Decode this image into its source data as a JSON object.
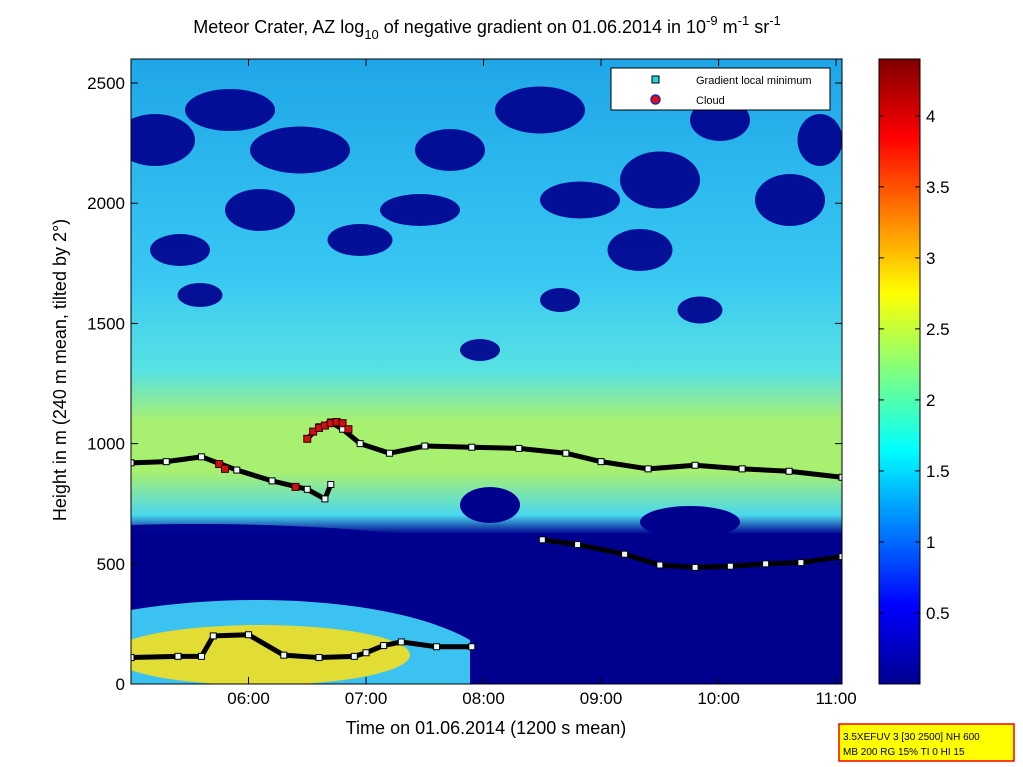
{
  "chart_data": {
    "type": "heatmap",
    "title_main": "Meteor Crater, AZ log",
    "title_sub": "10",
    "title_mid": " of negative gradient on 01.06.2014 in 10",
    "title_sup1": "-9",
    "title_unit1": " m",
    "title_sup2": "-1",
    "title_unit2": " sr",
    "title_sup3": "-1",
    "xlabel": "Time on 01.06.2014 (1200 s mean)",
    "ylabel": "Height in m (240 m mean, tilted by 2°)",
    "xlim": [
      5.0,
      11.05
    ],
    "ylim": [
      0,
      2600
    ],
    "x_ticks": [
      {
        "value": 6,
        "label": "06:00"
      },
      {
        "value": 7,
        "label": "07:00"
      },
      {
        "value": 8,
        "label": "08:00"
      },
      {
        "value": 9,
        "label": "09:00"
      },
      {
        "value": 10,
        "label": "10:00"
      },
      {
        "value": 11,
        "label": "11:00"
      }
    ],
    "y_ticks": [
      {
        "value": 0,
        "label": "0"
      },
      {
        "value": 500,
        "label": "500"
      },
      {
        "value": 1000,
        "label": "1000"
      },
      {
        "value": 1500,
        "label": "1500"
      },
      {
        "value": 2000,
        "label": "2000"
      },
      {
        "value": 2500,
        "label": "2500"
      }
    ],
    "colorbar": {
      "range": [
        0,
        4.4
      ],
      "ticks": [
        {
          "value": 0.5,
          "label": "0.5"
        },
        {
          "value": 1,
          "label": "1"
        },
        {
          "value": 1.5,
          "label": "1.5"
        },
        {
          "value": 2,
          "label": "2"
        },
        {
          "value": 2.5,
          "label": "2.5"
        },
        {
          "value": 3,
          "label": "3"
        },
        {
          "value": 3.5,
          "label": "3.5"
        },
        {
          "value": 4,
          "label": "4"
        }
      ]
    },
    "legend": {
      "placement": "top-right",
      "entries": [
        {
          "label": "Gradient local minimum",
          "color": "#22d6e0",
          "marker": "square"
        },
        {
          "label": "Cloud",
          "color": "#e01010",
          "marker": "circle"
        }
      ]
    },
    "series": [
      {
        "kind": "gradient-min",
        "x": [
          5.0,
          5.3,
          5.6,
          5.9,
          6.2,
          6.5,
          6.65,
          6.7
        ],
        "y": [
          920,
          925,
          945,
          890,
          845,
          810,
          770,
          830
        ]
      },
      {
        "kind": "gradient-min",
        "x": [
          6.5,
          6.6,
          6.7,
          6.8,
          6.95,
          7.2,
          7.5,
          7.9,
          8.3,
          8.7,
          9.0,
          9.4,
          9.8,
          10.2,
          10.6,
          11.05
        ],
        "y": [
          1020,
          1070,
          1090,
          1060,
          1000,
          960,
          990,
          985,
          980,
          960,
          925,
          895,
          910,
          895,
          885,
          860
        ]
      },
      {
        "kind": "gradient-min",
        "x": [
          8.5,
          8.8,
          9.2,
          9.5,
          9.8,
          10.1,
          10.4,
          10.7,
          11.05
        ],
        "y": [
          600,
          580,
          540,
          495,
          485,
          490,
          500,
          505,
          530
        ]
      },
      {
        "kind": "gradient-min",
        "x": [
          5.0,
          5.4,
          5.6,
          5.7,
          6.0,
          6.3,
          6.6,
          6.9,
          7.0,
          7.15,
          7.3,
          7.6,
          7.9
        ],
        "y": [
          110,
          115,
          115,
          200,
          205,
          120,
          110,
          115,
          130,
          160,
          175,
          155,
          155
        ]
      },
      {
        "kind": "cloud",
        "x": [
          5.75,
          5.8,
          6.4,
          6.5,
          6.55,
          6.6,
          6.65,
          6.7,
          6.75,
          6.8,
          6.85
        ],
        "y": [
          915,
          895,
          820,
          1020,
          1050,
          1065,
          1075,
          1085,
          1090,
          1085,
          1060
        ]
      }
    ],
    "info_box": {
      "line1": "3.5XEFUV 3 [30 2500] NH 600",
      "line2": "MB 200 RG 15% TI 0 HI 15",
      "fill": "#ffff00",
      "border": "#ff0000"
    },
    "colors": {
      "background_low": "#00007f",
      "mid": "#29d4f5",
      "layer": "#8cff70",
      "high": "#ffd400",
      "max": "#800000"
    }
  }
}
